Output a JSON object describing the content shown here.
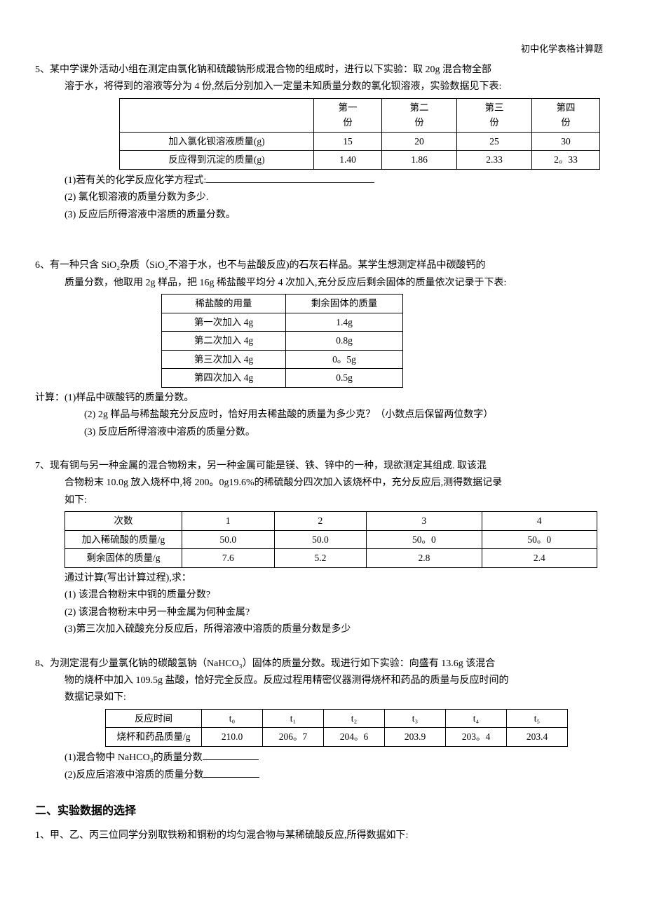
{
  "header": {
    "text": "初中化学表格计算题"
  },
  "q5": {
    "num": "5、",
    "lines": [
      "某中学课外活动小组在测定由氯化钠和硫酸钠形成混合物的组成时，进行以下实验：取 20g 混合物全部",
      "溶于水，将得到的溶液等分为 4 份,然后分别加入一定量未知质量分数的氯化钡溶液，实验数据见下表:"
    ],
    "table": {
      "headers": [
        "",
        "第一份",
        "第二份",
        "第三份",
        "第四份"
      ],
      "rows": [
        {
          "label": "加入氯化钡溶液质量(g)",
          "cells": [
            "15",
            "20",
            "25",
            "30"
          ]
        },
        {
          "label": "反应得到沉淀的质量(g)",
          "cells": [
            "1.40",
            "1.86",
            "2.33",
            "2。33"
          ]
        }
      ],
      "col_widths": [
        "260px",
        "80px",
        "90px",
        "90px",
        "80px"
      ]
    },
    "sub": [
      "(1)若有关的化学反应化学方程式:",
      "(2) 氯化钡溶液的质量分数为多少.",
      "(3) 反应后所得溶液中溶质的质量分数。"
    ]
  },
  "q6": {
    "num": "6、",
    "lines": [
      "有一种只含 SiO₂杂质（SiO₂不溶于水，也不与盐酸反应)的石灰石样品。某学生想测定样品中碳酸钙的",
      "质量分数，他取用 2g 样品，把 16g 稀盐酸平均分 4 次加入,充分反应后剩余固体的质量依次记录于下表:"
    ],
    "table": {
      "headers": [
        "稀盐酸的用量",
        "剩余固体的质量"
      ],
      "rows": [
        [
          "第一次加入 4g",
          "1.4g"
        ],
        [
          "第二次加入 4g",
          "0.8g"
        ],
        [
          "第三次加入 4g",
          "0。5g"
        ],
        [
          "第四次加入 4g",
          "0.5g"
        ]
      ],
      "col_widths": [
        "160px",
        "150px"
      ]
    },
    "pre_calc": "计算：(1)样品中碳酸钙的质量分数。",
    "sub": [
      "(2) 2g 样品与稀盐酸充分反应时，恰好用去稀盐酸的质量为多少克？（小数点后保留两位数字）",
      "(3) 反应后所得溶液中溶质的质量分数。"
    ]
  },
  "q7": {
    "num": "7、",
    "lines": [
      "现有铜与另一种金属的混合物粉末，另一种金属可能是镁、铁、锌中的一种，现欲测定其组成.   取该混",
      "合物粉末 10.0g 放入烧杯中,将 200。0g19.6%的稀硫酸分四次加入该烧杯中，充分反应后,测得数据记录",
      "如下:"
    ],
    "table": {
      "headers": [
        "次数",
        "1",
        "2",
        "3",
        "4"
      ],
      "rows": [
        {
          "label": "加入稀硫酸的质量/g",
          "cells": [
            "50.0",
            "50.0",
            "50。0",
            "50。0"
          ]
        },
        {
          "label": "剩余固体的质量/g",
          "cells": [
            "7.6",
            "5.2",
            "2.8",
            "2.4"
          ]
        }
      ],
      "col_widths": [
        "150px",
        "130px",
        "150px",
        "150px",
        "150px"
      ]
    },
    "after": "通过计算(写出计算过程),求：",
    "sub": [
      "(1) 该混合物粉末中铜的质量分数?",
      "(2) 该混合物粉末中另一种金属为何种金属?",
      "(3)第三次加入硫酸充分反应后，所得溶液中溶质的质量分数是多少"
    ]
  },
  "q8": {
    "num": "8、",
    "lines": [
      "为测定混有少量氯化钠的碳酸氢钠（NaHCO₃）固体的质量分数。现进行如下实验：向盛有 13.6g 该混合",
      "物的烧杯中加入 109.5g 盐酸，恰好完全反应。反应过程用精密仪器测得烧杯和药品的质量与反应时间的",
      "数据记录如下:"
    ],
    "table": {
      "headers": [
        "反应时间",
        "t₀",
        "t₁",
        "t₂",
        "t₃",
        "t₄",
        "t₅"
      ],
      "rows": [
        {
          "label": "烧杯和药品质量/g",
          "cells": [
            "210.0",
            "206。7",
            "204。6",
            "203.9",
            "203。4",
            "203.4"
          ]
        }
      ],
      "col_widths": [
        "120px",
        "80px",
        "80px",
        "80px",
        "80px",
        "80px",
        "80px"
      ]
    },
    "sub": [
      "(1)混合物中 NaHCO₃的质量分数",
      "(2)反应后溶液中溶质的质量分数"
    ]
  },
  "section2": {
    "title": "二、实验数据的选择",
    "q1": {
      "num": "1、",
      "text": "甲、乙、丙三位同学分别取铁粉和铜粉的均匀混合物与某稀硫酸反应,所得数据如下:"
    }
  },
  "style": {
    "font_family": "SimSun, 宋体, serif",
    "font_size_body": 14,
    "font_size_table": 13.5,
    "text_color": "#000000",
    "background_color": "#ffffff",
    "border_color": "#000000"
  }
}
